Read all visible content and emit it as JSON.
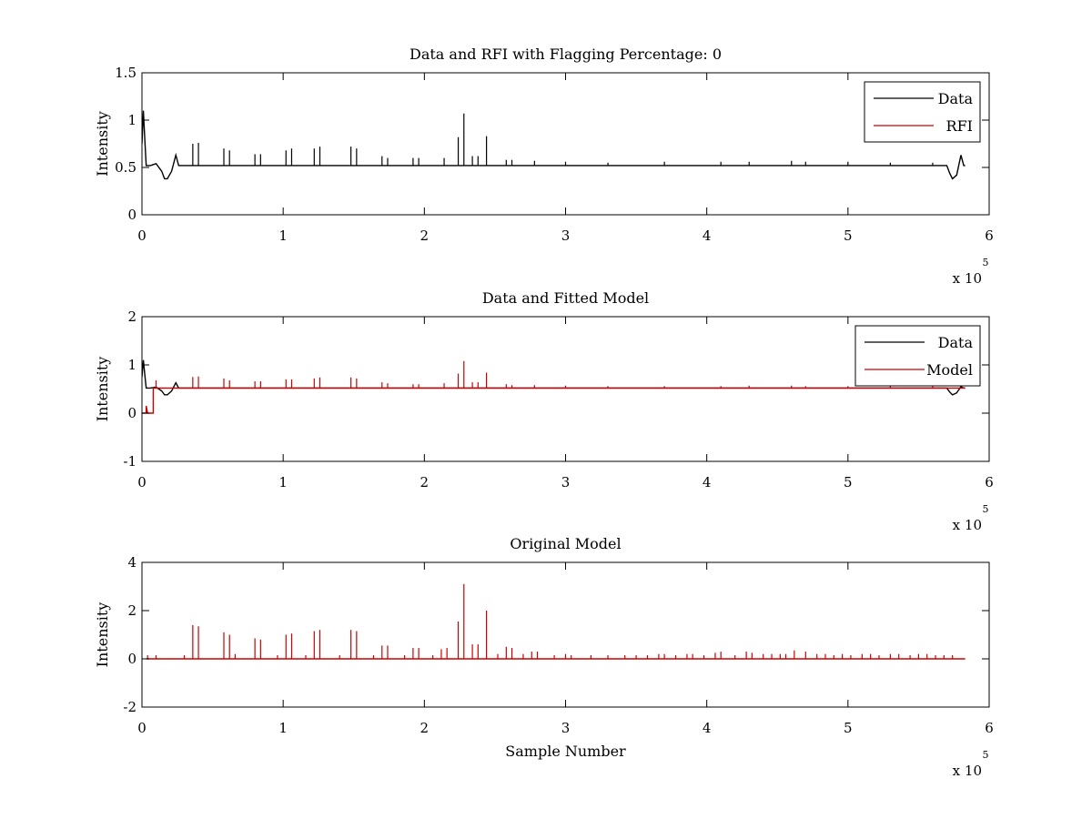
{
  "chart_data": [
    {
      "type": "line",
      "title": "Data and RFI with Flagging Percentage: 0",
      "xlabel": "",
      "ylabel": "Intensity",
      "xlim": [
        0,
        600000
      ],
      "ylim": [
        0,
        1.5
      ],
      "xticks": [
        "0",
        "1",
        "2",
        "3",
        "4",
        "5",
        "6"
      ],
      "yticks": [
        "0",
        "0.5",
        "1",
        "1.5"
      ],
      "x_multiplier": "x 10",
      "x_exponent": "5",
      "legend_position": "top-right",
      "series": [
        {
          "name": "Data",
          "color": "#000000",
          "baseline": 0.52,
          "points": [
            [
              0,
              0.75
            ],
            [
              1000,
              1.1
            ],
            [
              2000,
              0.8
            ],
            [
              3000,
              0.52
            ],
            [
              6000,
              0.52
            ],
            [
              10000,
              0.54
            ],
            [
              14000,
              0.46
            ],
            [
              16000,
              0.38
            ],
            [
              18000,
              0.38
            ],
            [
              21000,
              0.46
            ],
            [
              24000,
              0.63
            ],
            [
              26000,
              0.52
            ],
            [
              570000,
              0.52
            ],
            [
              572000,
              0.44
            ],
            [
              574000,
              0.38
            ],
            [
              577000,
              0.42
            ],
            [
              580000,
              0.63
            ],
            [
              582000,
              0.52
            ],
            [
              583000,
              0.52
            ]
          ],
          "spikes": [
            [
              36000,
              0.75
            ],
            [
              40000,
              0.76
            ],
            [
              58000,
              0.7
            ],
            [
              62000,
              0.68
            ],
            [
              80000,
              0.64
            ],
            [
              84000,
              0.64
            ],
            [
              102000,
              0.68
            ],
            [
              106000,
              0.7
            ],
            [
              122000,
              0.7
            ],
            [
              126000,
              0.72
            ],
            [
              148000,
              0.72
            ],
            [
              152000,
              0.7
            ],
            [
              170000,
              0.62
            ],
            [
              174000,
              0.6
            ],
            [
              192000,
              0.6
            ],
            [
              196000,
              0.6
            ],
            [
              214000,
              0.6
            ],
            [
              224000,
              0.82
            ],
            [
              228000,
              1.07
            ],
            [
              234000,
              0.62
            ],
            [
              238000,
              0.62
            ],
            [
              244000,
              0.83
            ],
            [
              258000,
              0.58
            ],
            [
              262000,
              0.58
            ],
            [
              278000,
              0.57
            ],
            [
              300000,
              0.56
            ],
            [
              330000,
              0.55
            ],
            [
              370000,
              0.56
            ],
            [
              410000,
              0.56
            ],
            [
              430000,
              0.56
            ],
            [
              460000,
              0.57
            ],
            [
              470000,
              0.56
            ],
            [
              500000,
              0.56
            ],
            [
              530000,
              0.55
            ],
            [
              560000,
              0.55
            ]
          ]
        },
        {
          "name": "RFI",
          "color": "#cc0000",
          "points": []
        }
      ]
    },
    {
      "type": "line",
      "title": "Data and Fitted Model",
      "xlabel": "",
      "ylabel": "Intensity",
      "xlim": [
        0,
        600000
      ],
      "ylim": [
        -1,
        2
      ],
      "xticks": [
        "0",
        "1",
        "2",
        "3",
        "4",
        "5",
        "6"
      ],
      "yticks": [
        "-1",
        "0",
        "1",
        "2"
      ],
      "x_multiplier": "x 10",
      "x_exponent": "5",
      "legend_position": "top-right",
      "series": [
        {
          "name": "Data",
          "color": "#000000",
          "baseline": 0.52,
          "points": [
            [
              0,
              0.75
            ],
            [
              1000,
              1.1
            ],
            [
              2000,
              0.8
            ],
            [
              3000,
              0.52
            ],
            [
              6000,
              0.52
            ],
            [
              10000,
              0.54
            ],
            [
              14000,
              0.46
            ],
            [
              16000,
              0.38
            ],
            [
              18000,
              0.38
            ],
            [
              21000,
              0.46
            ],
            [
              24000,
              0.63
            ],
            [
              26000,
              0.52
            ],
            [
              570000,
              0.52
            ],
            [
              572000,
              0.44
            ],
            [
              574000,
              0.38
            ],
            [
              577000,
              0.42
            ],
            [
              580000,
              0.55
            ],
            [
              582000,
              0.52
            ],
            [
              583000,
              0.52
            ]
          ],
          "spikes": []
        },
        {
          "name": "Model",
          "color": "#cc0000",
          "baseline": 0.52,
          "points": [
            [
              0,
              0.0
            ],
            [
              3000,
              0.0
            ],
            [
              3001,
              0.15
            ],
            [
              4000,
              0.0
            ],
            [
              8000,
              0.0
            ],
            [
              8001,
              0.52
            ],
            [
              583000,
              0.52
            ]
          ],
          "spikes": [
            [
              10000,
              0.68
            ],
            [
              36000,
              0.75
            ],
            [
              40000,
              0.76
            ],
            [
              58000,
              0.72
            ],
            [
              62000,
              0.68
            ],
            [
              80000,
              0.66
            ],
            [
              84000,
              0.66
            ],
            [
              102000,
              0.7
            ],
            [
              106000,
              0.7
            ],
            [
              122000,
              0.72
            ],
            [
              126000,
              0.74
            ],
            [
              148000,
              0.74
            ],
            [
              152000,
              0.72
            ],
            [
              170000,
              0.64
            ],
            [
              174000,
              0.62
            ],
            [
              192000,
              0.6
            ],
            [
              196000,
              0.6
            ],
            [
              214000,
              0.62
            ],
            [
              224000,
              0.82
            ],
            [
              228000,
              1.08
            ],
            [
              234000,
              0.64
            ],
            [
              238000,
              0.64
            ],
            [
              244000,
              0.84
            ],
            [
              258000,
              0.6
            ],
            [
              262000,
              0.58
            ],
            [
              278000,
              0.58
            ],
            [
              300000,
              0.57
            ],
            [
              330000,
              0.56
            ],
            [
              370000,
              0.56
            ],
            [
              410000,
              0.56
            ],
            [
              430000,
              0.57
            ],
            [
              460000,
              0.57
            ],
            [
              470000,
              0.56
            ],
            [
              500000,
              0.56
            ],
            [
              530000,
              0.56
            ],
            [
              560000,
              0.56
            ]
          ]
        }
      ]
    },
    {
      "type": "line",
      "title": "Original Model",
      "xlabel": "Sample Number",
      "ylabel": "Intensity",
      "xlim": [
        0,
        600000
      ],
      "ylim": [
        -2,
        4
      ],
      "xticks": [
        "0",
        "1",
        "2",
        "3",
        "4",
        "5",
        "6"
      ],
      "yticks": [
        "-2",
        "0",
        "2",
        "4"
      ],
      "x_multiplier": "x 10",
      "x_exponent": "5",
      "series": [
        {
          "name": "",
          "color": "#cc0000",
          "baseline": 0.0,
          "points": [
            [
              3000,
              0.0
            ],
            [
              583000,
              0.0
            ]
          ],
          "spikes": [
            [
              4000,
              0.15
            ],
            [
              10000,
              0.15
            ],
            [
              30000,
              0.15
            ],
            [
              36000,
              1.4
            ],
            [
              40000,
              1.35
            ],
            [
              58000,
              1.1
            ],
            [
              62000,
              1.0
            ],
            [
              66000,
              0.2
            ],
            [
              80000,
              0.85
            ],
            [
              84000,
              0.8
            ],
            [
              96000,
              0.15
            ],
            [
              102000,
              1.0
            ],
            [
              106000,
              1.05
            ],
            [
              116000,
              0.15
            ],
            [
              122000,
              1.15
            ],
            [
              126000,
              1.2
            ],
            [
              140000,
              0.15
            ],
            [
              148000,
              1.2
            ],
            [
              152000,
              1.15
            ],
            [
              164000,
              0.15
            ],
            [
              170000,
              0.55
            ],
            [
              174000,
              0.55
            ],
            [
              186000,
              0.15
            ],
            [
              192000,
              0.45
            ],
            [
              196000,
              0.45
            ],
            [
              206000,
              0.15
            ],
            [
              212000,
              0.4
            ],
            [
              216000,
              0.45
            ],
            [
              224000,
              1.55
            ],
            [
              228000,
              3.1
            ],
            [
              234000,
              0.6
            ],
            [
              238000,
              0.6
            ],
            [
              244000,
              2.0
            ],
            [
              252000,
              0.2
            ],
            [
              258000,
              0.5
            ],
            [
              262000,
              0.45
            ],
            [
              270000,
              0.2
            ],
            [
              276000,
              0.3
            ],
            [
              280000,
              0.3
            ],
            [
              292000,
              0.15
            ],
            [
              300000,
              0.2
            ],
            [
              304000,
              0.15
            ],
            [
              318000,
              0.15
            ],
            [
              330000,
              0.15
            ],
            [
              342000,
              0.15
            ],
            [
              350000,
              0.15
            ],
            [
              358000,
              0.15
            ],
            [
              366000,
              0.2
            ],
            [
              370000,
              0.2
            ],
            [
              378000,
              0.15
            ],
            [
              386000,
              0.2
            ],
            [
              390000,
              0.2
            ],
            [
              398000,
              0.15
            ],
            [
              406000,
              0.25
            ],
            [
              410000,
              0.3
            ],
            [
              420000,
              0.15
            ],
            [
              428000,
              0.3
            ],
            [
              432000,
              0.25
            ],
            [
              440000,
              0.2
            ],
            [
              446000,
              0.2
            ],
            [
              452000,
              0.2
            ],
            [
              456000,
              0.2
            ],
            [
              462000,
              0.35
            ],
            [
              470000,
              0.3
            ],
            [
              478000,
              0.2
            ],
            [
              484000,
              0.2
            ],
            [
              490000,
              0.15
            ],
            [
              496000,
              0.2
            ],
            [
              502000,
              0.15
            ],
            [
              510000,
              0.2
            ],
            [
              516000,
              0.2
            ],
            [
              522000,
              0.15
            ],
            [
              530000,
              0.2
            ],
            [
              536000,
              0.2
            ],
            [
              544000,
              0.15
            ],
            [
              550000,
              0.2
            ],
            [
              556000,
              0.2
            ],
            [
              562000,
              0.15
            ],
            [
              568000,
              0.15
            ],
            [
              574000,
              0.15
            ]
          ]
        }
      ]
    }
  ]
}
